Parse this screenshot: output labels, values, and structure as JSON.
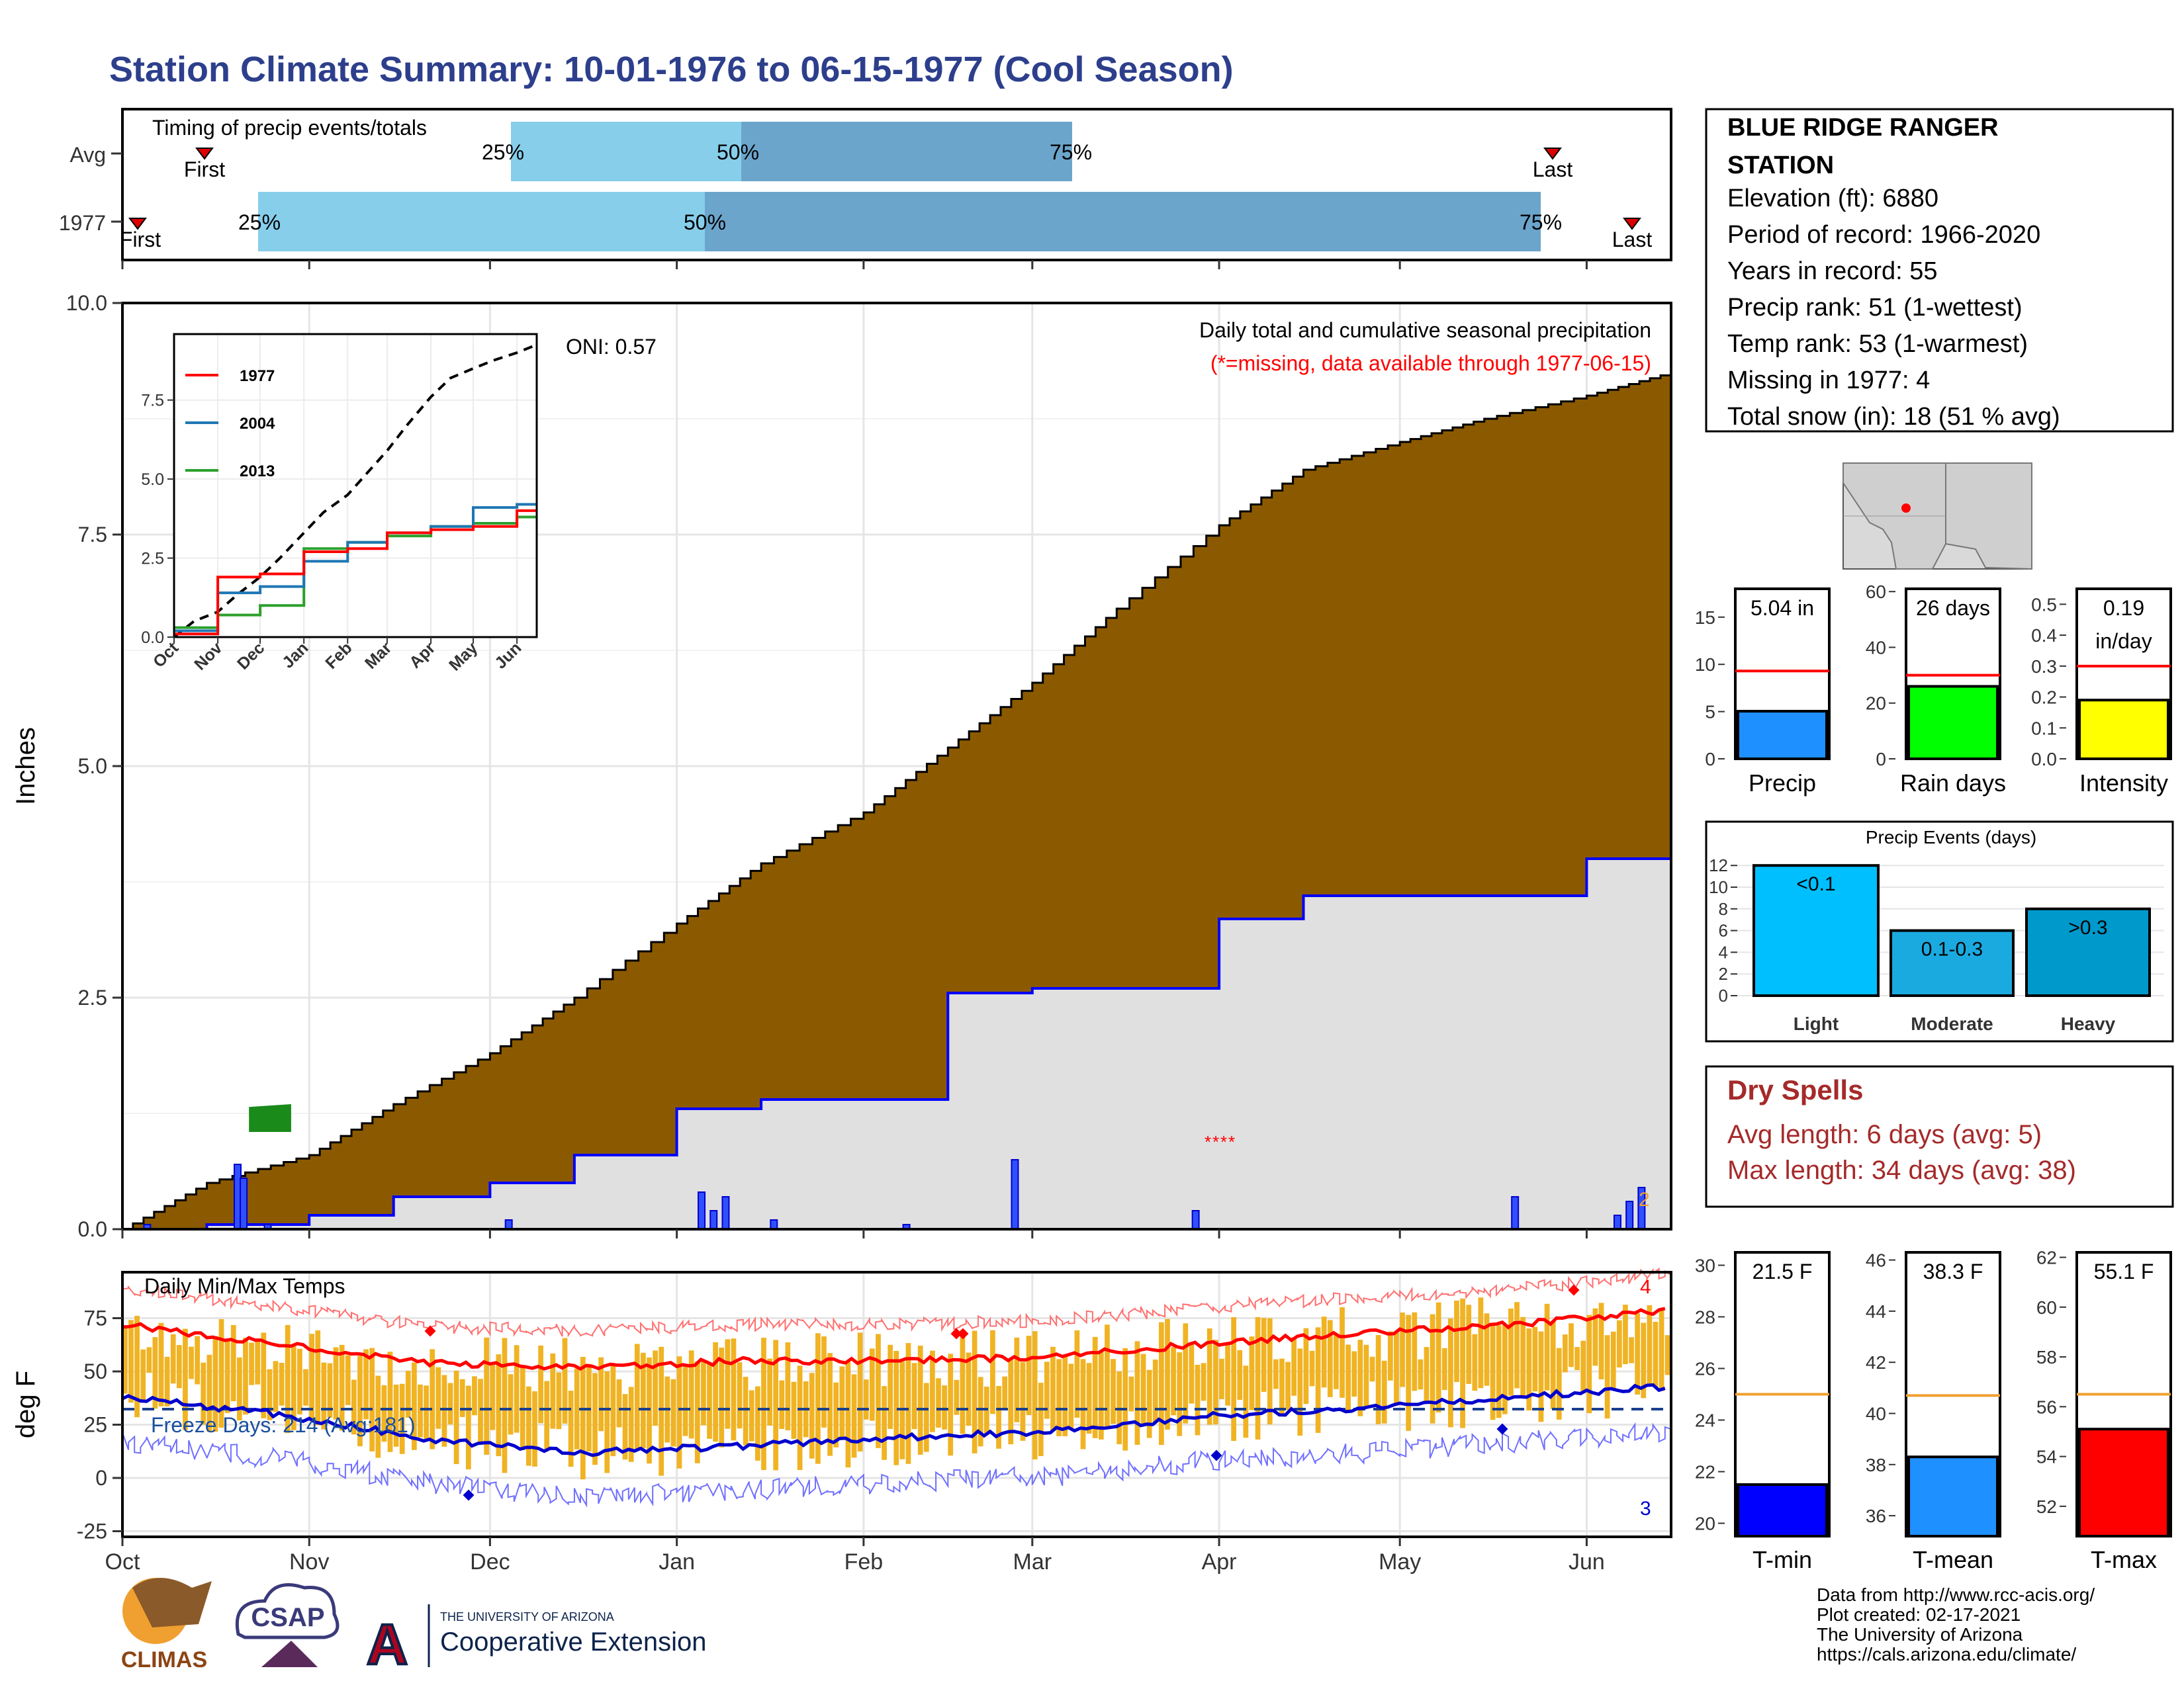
{
  "title": "Station Climate Summary: 10-01-1976 to 06-15-1977 (Cool Season)",
  "colors": {
    "title": "#2d3f8c",
    "cum_area": "#8b5a00",
    "avg_area": "#e0e0e0",
    "avg_line": "#0000ff",
    "bar_light": "#87ceeb",
    "bar_dark": "#6ba5cc",
    "temp_bar": "#f0b323",
    "red": "#ff0000",
    "blue": "#0000cc",
    "dry_text": "#a52a2a"
  },
  "timing": {
    "title": "Timing of precip events/totals",
    "rows": [
      "Avg",
      "1977"
    ],
    "avg_markers": {
      "first": "First",
      "last": "Last",
      "p25": "25%",
      "p50": "50%",
      "p75": "75%"
    },
    "y1977_markers": {
      "first": "First",
      "last": "Last",
      "p25": "25%",
      "p50": "50%",
      "p75": "75%"
    }
  },
  "precip_panel": {
    "ylabel": "Inches",
    "yticks": [
      "0.0",
      "2.5",
      "5.0",
      "7.5",
      "10.0"
    ],
    "oni": "ONI: 0.57",
    "label": "Daily total and cumulative seasonal precipitation",
    "missing_note": "(*=missing, data available through 1977-06-15)",
    "end_count": "2"
  },
  "inset": {
    "yticks": [
      "0.0",
      "2.5",
      "5.0",
      "7.5"
    ],
    "xticks": [
      "Oct",
      "Nov",
      "Dec",
      "Jan",
      "Feb",
      "Mar",
      "Apr",
      "May",
      "Jun"
    ],
    "legend": [
      {
        "label": "1977",
        "color": "#ff0000"
      },
      {
        "label": "2004",
        "color": "#1f77b4"
      },
      {
        "label": "2013",
        "color": "#2ca02c"
      }
    ]
  },
  "temp_panel": {
    "ylabel": "deg F",
    "title": "Daily Min/Max Temps",
    "freeze": "Freeze Days: 214 (Avg:181)",
    "yticks": [
      "-25",
      "0",
      "25",
      "50",
      "75"
    ],
    "count_red": "4",
    "count_blue": "3"
  },
  "months": [
    "Oct",
    "Nov",
    "Dec",
    "Jan",
    "Feb",
    "Mar",
    "Apr",
    "May",
    "Jun"
  ],
  "station": {
    "name_line1": "BLUE RIDGE RANGER",
    "name_line2": "STATION",
    "elevation": "Elevation (ft): 6880",
    "period": "Period of record: 1966-2020",
    "years": "Years in record: 55",
    "precip_rank": "Precip rank: 51 (1-wettest)",
    "temp_rank": "Temp rank: 53 (1-warmest)",
    "missing": "Missing in 1977: 4",
    "snow": "Total snow (in): 18 (51 % avg)"
  },
  "mini_bars": [
    {
      "label": "Precip",
      "value_text": "5.04 in",
      "value": 5.04,
      "avg": 9.3,
      "ymax": 18,
      "ticks": [
        "0",
        "5",
        "10",
        "15"
      ],
      "color": "#1e90ff"
    },
    {
      "label": "Rain days",
      "value_text": "26 days",
      "value": 26,
      "avg": 30,
      "ymax": 61,
      "ticks": [
        "0",
        "20",
        "40",
        "60"
      ],
      "color": "#00ff00"
    },
    {
      "label": "Intensity",
      "value_text": "0.19",
      "value_text2": "in/day",
      "value": 0.19,
      "avg": 0.3,
      "ymax": 0.55,
      "ticks": [
        "0.0",
        "0.1",
        "0.2",
        "0.3",
        "0.4",
        "0.5"
      ],
      "color": "#ffff00"
    }
  ],
  "precip_events": {
    "title": "Precip Events (days)",
    "yticks": [
      "0",
      "2",
      "4",
      "6",
      "8",
      "10",
      "12"
    ],
    "bars": [
      {
        "label": "Light",
        "inner": "<0.1",
        "value": 12,
        "color": "#00bfff"
      },
      {
        "label": "Moderate",
        "inner": "0.1-0.3",
        "value": 6,
        "color": "#1aaae0"
      },
      {
        "label": "Heavy",
        "inner": ">0.3",
        "value": 8,
        "color": "#0099cc"
      }
    ]
  },
  "dry_spells": {
    "title": "Dry Spells",
    "avg": "Avg length: 6 days (avg: 5)",
    "max": "Max length: 34 days (avg: 38)"
  },
  "temp_bars": [
    {
      "label": "T-min",
      "value_text": "21.5 F",
      "value": 21.5,
      "avg": 25.0,
      "ymin": 19.5,
      "ymax": 30.5,
      "ticks": [
        "20",
        "22",
        "24",
        "26",
        "28",
        "30"
      ],
      "color": "#0000ff"
    },
    {
      "label": "T-mean",
      "value_text": "38.3 F",
      "value": 38.3,
      "avg": 40.7,
      "ymin": 35.2,
      "ymax": 46.3,
      "ticks": [
        "36",
        "38",
        "40",
        "42",
        "44",
        "46"
      ],
      "color": "#1e90ff"
    },
    {
      "label": "T-max",
      "value_text": "55.1 F",
      "value": 55.1,
      "avg": 56.5,
      "ymin": 50.8,
      "ymax": 62.2,
      "ticks": [
        "52",
        "54",
        "56",
        "58",
        "60",
        "62"
      ],
      "color": "#ff0000"
    }
  ],
  "footer": {
    "line1": "Data from http://www.rcc-acis.org/",
    "line2": "Plot created: 02-17-2021",
    "line3": "The University of Arizona",
    "line4": "https://cals.arizona.edu/climate/"
  },
  "logos": {
    "climas": "CLIMAS",
    "csap": "CSAP",
    "ua_small": "THE UNIVERSITY OF ARIZONA",
    "coop": "Cooperative Extension"
  },
  "chart_data": {
    "type": "area",
    "x_range": [
      "1976-10-01",
      "1977-06-15"
    ],
    "cumulative_1977": {
      "name": "1977",
      "dates": [
        "1976-10-01",
        "1976-10-15",
        "1976-11-01",
        "1976-11-15",
        "1976-12-01",
        "1976-12-15",
        "1977-01-01",
        "1977-01-15",
        "1977-02-01",
        "1977-02-15",
        "1977-03-01",
        "1977-03-15",
        "1977-04-01",
        "1977-04-15",
        "1977-05-01",
        "1977-05-15",
        "1977-06-01",
        "1977-06-15"
      ],
      "values": [
        0.0,
        0.05,
        0.15,
        0.35,
        0.5,
        0.8,
        1.3,
        1.4,
        1.4,
        2.55,
        2.6,
        2.6,
        3.35,
        3.6,
        3.6,
        3.6,
        4.0,
        5.04
      ]
    },
    "cumulative_avg": {
      "dates": [
        "1976-10-01",
        "1976-10-15",
        "1976-11-01",
        "1976-11-15",
        "1976-12-01",
        "1976-12-15",
        "1977-01-01",
        "1977-01-15",
        "1977-02-01",
        "1977-02-15",
        "1977-03-01",
        "1977-03-15",
        "1977-04-01",
        "1977-04-15",
        "1977-05-01",
        "1977-05-15",
        "1977-06-01",
        "1977-06-15"
      ],
      "values": [
        0.0,
        0.5,
        0.8,
        1.35,
        1.9,
        2.5,
        3.3,
        3.95,
        4.5,
        5.2,
        5.9,
        6.7,
        7.6,
        8.2,
        8.5,
        8.75,
        9.0,
        9.25
      ]
    },
    "ylim": [
      0,
      10
    ],
    "ylabel": "Inches",
    "temps": {
      "ylim": [
        -30,
        90
      ],
      "ylabel": "deg F",
      "avg_max_trend": [
        72,
        63,
        54,
        52,
        55,
        55,
        57,
        63,
        68,
        72,
        79
      ],
      "avg_min_trend": [
        38,
        30,
        18,
        12,
        15,
        19,
        22,
        29,
        33,
        38,
        43
      ]
    }
  }
}
